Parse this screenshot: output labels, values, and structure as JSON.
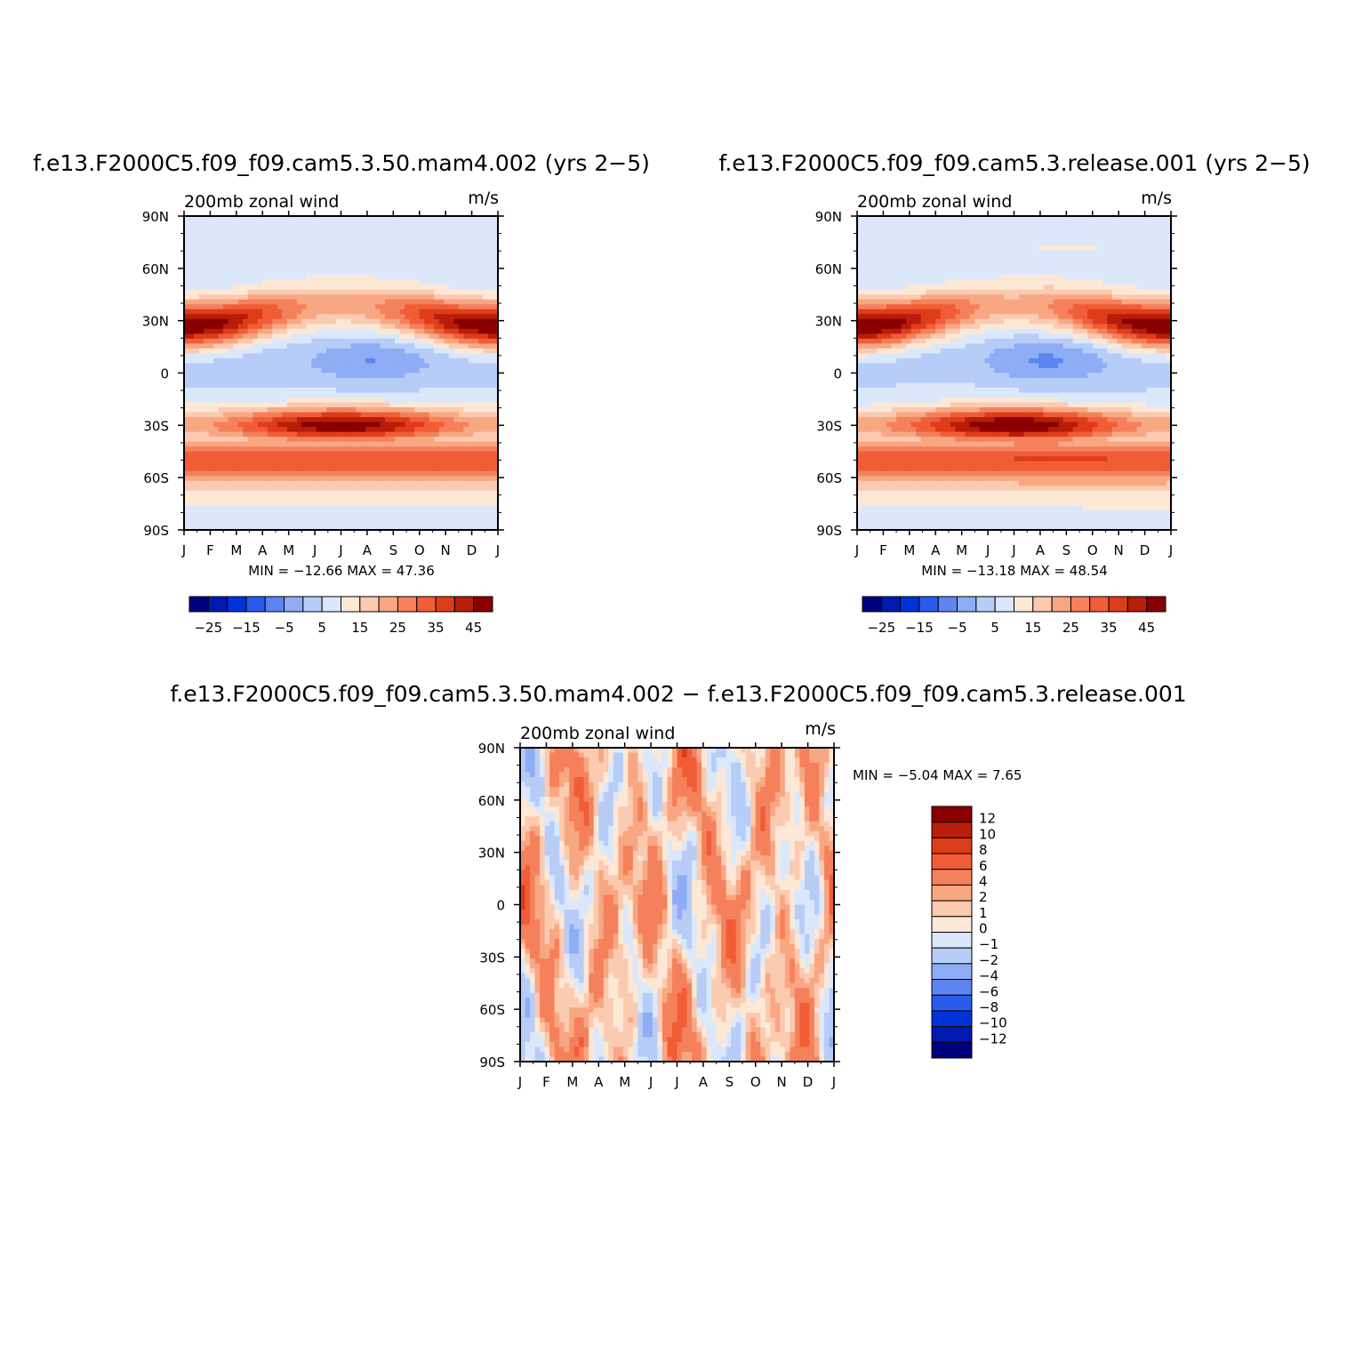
{
  "colors": {
    "sequential": [
      "#00007f",
      "#0019b3",
      "#0033d9",
      "#2a5bef",
      "#5c85f2",
      "#8fadf5",
      "#b7cdf8",
      "#dbe8fb",
      "#fde8d6",
      "#fbcab0",
      "#f8a783",
      "#f5815c",
      "#f15d37",
      "#de3d19",
      "#b71d0b",
      "#8a0000"
    ],
    "difference": [
      "#00007f",
      "#0019b3",
      "#0033d9",
      "#2a5bef",
      "#5c85f2",
      "#8fadf5",
      "#b7cdf8",
      "#dbe8fb",
      "#fde8d6",
      "#fbcab0",
      "#f8a783",
      "#f5815c",
      "#f15d37",
      "#de3d19",
      "#b71d0b",
      "#8a0000"
    ]
  },
  "chart_data": [
    {
      "type": "heatmap",
      "title": "f.e13.F2000C5.f09_f09.cam5.3.50.mam4.002 (yrs 2−5)",
      "subtitle_left": "200mb zonal wind",
      "subtitle_right": "m/s",
      "x_ticks": [
        "J",
        "F",
        "M",
        "A",
        "M",
        "J",
        "J",
        "A",
        "S",
        "O",
        "N",
        "D",
        "J"
      ],
      "y_ticks": [
        "90N",
        "60N",
        "30N",
        "0",
        "30S",
        "60S",
        "90S"
      ],
      "y_values": [
        90,
        60,
        30,
        0,
        -30,
        -60,
        -90
      ],
      "stats": "MIN = −12.66 MAX =  47.36",
      "min": -12.66,
      "max": 47.36,
      "colorbar_labels": [
        "−25",
        "−15",
        "−5",
        "5",
        "15",
        "25",
        "35",
        "45"
      ],
      "contour_levels": [
        -30,
        -25,
        -20,
        -15,
        -10,
        -5,
        0,
        5,
        10,
        15,
        20,
        25,
        30,
        35,
        40,
        45
      ]
    },
    {
      "type": "heatmap",
      "title": "f.e13.F2000C5.f09_f09.cam5.3.release.001 (yrs 2−5)",
      "subtitle_left": "200mb zonal wind",
      "subtitle_right": "m/s",
      "x_ticks": [
        "J",
        "F",
        "M",
        "A",
        "M",
        "J",
        "J",
        "A",
        "S",
        "O",
        "N",
        "D",
        "J"
      ],
      "y_ticks": [
        "90N",
        "60N",
        "30N",
        "0",
        "30S",
        "60S",
        "90S"
      ],
      "y_values": [
        90,
        60,
        30,
        0,
        -30,
        -60,
        -90
      ],
      "stats": "MIN = −13.18 MAX =  48.54",
      "min": -13.18,
      "max": 48.54,
      "colorbar_labels": [
        "−25",
        "−15",
        "−5",
        "5",
        "15",
        "25",
        "35",
        "45"
      ],
      "contour_levels": [
        -30,
        -25,
        -20,
        -15,
        -10,
        -5,
        0,
        5,
        10,
        15,
        20,
        25,
        30,
        35,
        40,
        45
      ]
    },
    {
      "type": "heatmap",
      "title": "f.e13.F2000C5.f09_f09.cam5.3.50.mam4.002 − f.e13.F2000C5.f09_f09.cam5.3.release.001",
      "subtitle_left": "200mb zonal wind",
      "subtitle_right": "m/s",
      "x_ticks": [
        "J",
        "F",
        "M",
        "A",
        "M",
        "J",
        "J",
        "A",
        "S",
        "O",
        "N",
        "D",
        "J"
      ],
      "y_ticks": [
        "90N",
        "60N",
        "30N",
        "0",
        "30S",
        "60S",
        "90S"
      ],
      "y_values": [
        90,
        60,
        30,
        0,
        -30,
        -60,
        -90
      ],
      "stats": "MIN =   −5.04 MAX =    7.65",
      "min": -5.04,
      "max": 7.65,
      "colorbar_labels": [
        "12",
        "10",
        "8",
        "6",
        "4",
        "2",
        "1",
        "0",
        "−1",
        "−2",
        "−4",
        "−6",
        "−8",
        "−10",
        "−12"
      ],
      "contour_levels": [
        -14,
        -12,
        -10,
        -8,
        -6,
        -4,
        -2,
        -1,
        0,
        1,
        2,
        4,
        6,
        8,
        10,
        12
      ]
    }
  ]
}
